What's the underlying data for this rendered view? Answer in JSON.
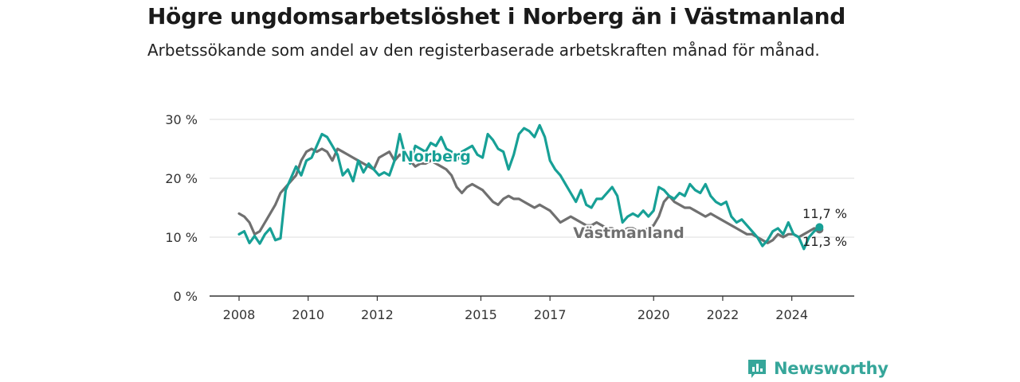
{
  "title": "Högre ungdomsarbetslöshet i Norberg än i Västmanland",
  "subtitle": "Arbetssökande som andel av den registerbaserade arbetskraften månad för månad.",
  "brand": "Newsworthy",
  "colors": {
    "norberg": "#17a096",
    "vastmanland": "#707070",
    "grid": "#dddddd",
    "axis": "#333333",
    "brand": "#36a69a"
  },
  "chart_data": {
    "type": "line",
    "ylim": [
      0,
      30
    ],
    "xlim": [
      2008,
      2025
    ],
    "y_ticks": [
      {
        "value": 0,
        "label": "0 %"
      },
      {
        "value": 10,
        "label": "10 %"
      },
      {
        "value": 20,
        "label": "20 %"
      },
      {
        "value": 30,
        "label": "30 %"
      }
    ],
    "x_ticks": [
      {
        "value": 2008,
        "label": "2008"
      },
      {
        "value": 2010,
        "label": "2010"
      },
      {
        "value": 2012,
        "label": "2012"
      },
      {
        "value": 2015,
        "label": "2015"
      },
      {
        "value": 2017,
        "label": "2017"
      },
      {
        "value": 2020,
        "label": "2020"
      },
      {
        "value": 2022,
        "label": "2022"
      },
      {
        "value": 2024,
        "label": "2024"
      }
    ],
    "grid": true,
    "series": [
      {
        "name": "Norberg",
        "color": "#17a096",
        "end_label": "11,7 %",
        "x": [
          2008.0,
          2008.15,
          2008.3,
          2008.45,
          2008.6,
          2008.75,
          2008.9,
          2009.05,
          2009.2,
          2009.35,
          2009.5,
          2009.65,
          2009.8,
          2009.95,
          2010.1,
          2010.25,
          2010.4,
          2010.55,
          2010.7,
          2010.85,
          2011.0,
          2011.15,
          2011.3,
          2011.45,
          2011.6,
          2011.75,
          2011.9,
          2012.05,
          2012.2,
          2012.35,
          2012.5,
          2012.65,
          2012.8,
          2012.95,
          2013.1,
          2013.25,
          2013.4,
          2013.55,
          2013.7,
          2013.85,
          2014.0,
          2014.15,
          2014.3,
          2014.45,
          2014.6,
          2014.75,
          2014.9,
          2015.05,
          2015.2,
          2015.35,
          2015.5,
          2015.65,
          2015.8,
          2015.95,
          2016.1,
          2016.25,
          2016.4,
          2016.55,
          2016.7,
          2016.85,
          2017.0,
          2017.15,
          2017.3,
          2017.45,
          2017.6,
          2017.75,
          2017.9,
          2018.05,
          2018.2,
          2018.35,
          2018.5,
          2018.65,
          2018.8,
          2018.95,
          2019.1,
          2019.25,
          2019.4,
          2019.55,
          2019.7,
          2019.85,
          2020.0,
          2020.15,
          2020.3,
          2020.45,
          2020.6,
          2020.75,
          2020.9,
          2021.05,
          2021.2,
          2021.35,
          2021.5,
          2021.65,
          2021.8,
          2021.95,
          2022.1,
          2022.25,
          2022.4,
          2022.55,
          2022.7,
          2022.85,
          2023.0,
          2023.15,
          2023.3,
          2023.45,
          2023.6,
          2023.75,
          2023.9,
          2024.05,
          2024.2,
          2024.35,
          2024.5,
          2024.65,
          2024.8
        ],
        "values": [
          10.5,
          11.0,
          9.0,
          10.2,
          8.9,
          10.5,
          11.5,
          9.5,
          9.8,
          18.0,
          20.0,
          22.0,
          20.5,
          23.0,
          23.5,
          25.5,
          27.5,
          27.0,
          25.5,
          24.0,
          20.5,
          21.5,
          19.5,
          23.0,
          21.0,
          22.5,
          21.5,
          20.5,
          21.0,
          20.5,
          23.0,
          27.5,
          24.0,
          22.5,
          25.5,
          25.0,
          24.5,
          26.0,
          25.5,
          27.0,
          25.0,
          24.5,
          23.0,
          24.5,
          25.0,
          25.5,
          24.0,
          23.5,
          27.5,
          26.5,
          25.0,
          24.5,
          21.5,
          24.0,
          27.5,
          28.5,
          28.0,
          27.0,
          29.0,
          27.0,
          23.0,
          21.5,
          20.5,
          19.0,
          17.5,
          16.0,
          18.0,
          15.5,
          15.0,
          16.5,
          16.5,
          17.5,
          18.5,
          17.0,
          12.5,
          13.5,
          14.0,
          13.5,
          14.5,
          13.5,
          14.5,
          18.5,
          18.0,
          17.0,
          16.5,
          17.5,
          17.0,
          19.0,
          18.0,
          17.5,
          19.0,
          17.0,
          16.0,
          15.5,
          16.0,
          13.5,
          12.5,
          13.0,
          12.0,
          11.0,
          10.0,
          8.5,
          9.5,
          11.0,
          11.5,
          10.5,
          12.5,
          10.5,
          10.0,
          8.0,
          10.0,
          11.0,
          11.7
        ]
      },
      {
        "name": "Västmanland",
        "color": "#707070",
        "end_label": "11,3 %",
        "x": [
          2008.0,
          2008.15,
          2008.3,
          2008.45,
          2008.6,
          2008.75,
          2008.9,
          2009.05,
          2009.2,
          2009.35,
          2009.5,
          2009.65,
          2009.8,
          2009.95,
          2010.1,
          2010.25,
          2010.4,
          2010.55,
          2010.7,
          2010.85,
          2011.0,
          2011.15,
          2011.3,
          2011.45,
          2011.6,
          2011.75,
          2011.9,
          2012.05,
          2012.2,
          2012.35,
          2012.5,
          2012.65,
          2012.8,
          2012.95,
          2013.1,
          2013.25,
          2013.4,
          2013.55,
          2013.7,
          2013.85,
          2014.0,
          2014.15,
          2014.3,
          2014.45,
          2014.6,
          2014.75,
          2014.9,
          2015.05,
          2015.2,
          2015.35,
          2015.5,
          2015.65,
          2015.8,
          2015.95,
          2016.1,
          2016.25,
          2016.4,
          2016.55,
          2016.7,
          2016.85,
          2017.0,
          2017.15,
          2017.3,
          2017.45,
          2017.6,
          2017.75,
          2017.9,
          2018.05,
          2018.2,
          2018.35,
          2018.5,
          2018.65,
          2018.8,
          2018.95,
          2019.1,
          2019.25,
          2019.4,
          2019.55,
          2019.7,
          2019.85,
          2020.0,
          2020.15,
          2020.3,
          2020.45,
          2020.6,
          2020.75,
          2020.9,
          2021.05,
          2021.2,
          2021.35,
          2021.5,
          2021.65,
          2021.8,
          2021.95,
          2022.1,
          2022.25,
          2022.4,
          2022.55,
          2022.7,
          2022.85,
          2023.0,
          2023.15,
          2023.3,
          2023.45,
          2023.6,
          2023.75,
          2023.9,
          2024.05,
          2024.2,
          2024.35,
          2024.5,
          2024.65,
          2024.8
        ],
        "values": [
          14.0,
          13.5,
          12.5,
          10.5,
          11.0,
          12.5,
          14.0,
          15.5,
          17.5,
          18.5,
          19.5,
          20.5,
          23.0,
          24.5,
          25.0,
          24.5,
          25.0,
          24.5,
          23.0,
          25.0,
          24.5,
          24.0,
          23.5,
          23.0,
          22.5,
          22.0,
          21.5,
          23.5,
          24.0,
          24.5,
          23.0,
          24.0,
          23.5,
          23.0,
          22.0,
          22.5,
          22.5,
          23.0,
          22.5,
          22.0,
          21.5,
          20.5,
          18.5,
          17.5,
          18.5,
          19.0,
          18.5,
          18.0,
          17.0,
          16.0,
          15.5,
          16.5,
          17.0,
          16.5,
          16.5,
          16.0,
          15.5,
          15.0,
          15.5,
          15.0,
          14.5,
          13.5,
          12.5,
          13.0,
          13.5,
          13.0,
          12.5,
          12.0,
          12.0,
          12.5,
          12.0,
          11.5,
          11.5,
          11.0,
          11.0,
          11.5,
          11.5,
          11.0,
          11.0,
          11.5,
          12.0,
          13.5,
          16.0,
          17.0,
          16.0,
          15.5,
          15.0,
          15.0,
          14.5,
          14.0,
          13.5,
          14.0,
          13.5,
          13.0,
          12.5,
          12.0,
          11.5,
          11.0,
          10.5,
          10.5,
          10.0,
          9.5,
          9.0,
          9.5,
          10.5,
          10.0,
          10.5,
          10.5,
          10.0,
          10.5,
          11.0,
          11.5,
          11.3
        ]
      }
    ],
    "inline_labels": [
      {
        "series": "Norberg",
        "text": "Norberg"
      },
      {
        "series": "Västmanland",
        "text": "Västmanland"
      }
    ]
  }
}
